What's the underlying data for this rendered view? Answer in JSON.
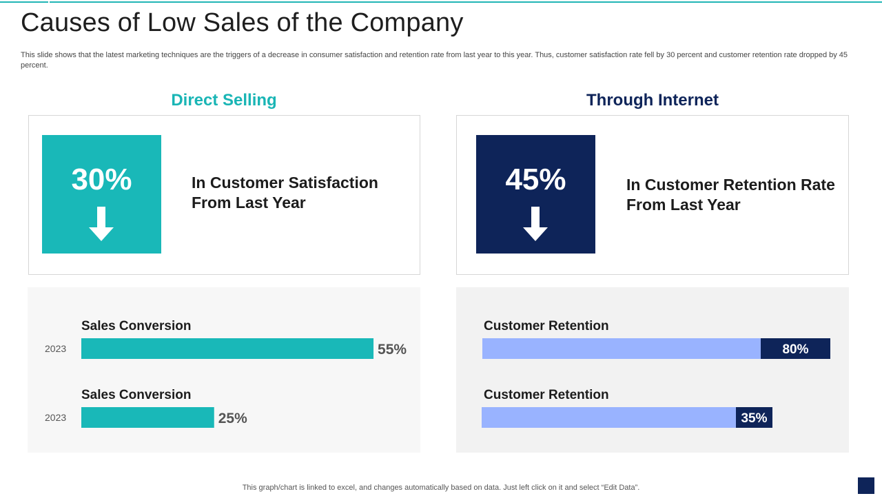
{
  "slide": {
    "title": "Causes of Low Sales of the Company",
    "subtitle": "This slide shows that the latest marketing techniques are the triggers of a decrease in consumer satisfaction and retention rate from last year to this year.  Thus, customer satisfaction rate fell by 30 percent and customer retention rate dropped by 45 percent.",
    "footer": "This graph/chart is linked to excel,  and changes automatically based on data. Just left click on it and select “Edit Data”."
  },
  "sections": {
    "left": {
      "heading": "Direct Selling",
      "stat_value": "30%",
      "stat_text": "In Customer Satisfaction From Last Year",
      "icon": "arrow-down-icon"
    },
    "right": {
      "heading": "Through Internet",
      "stat_value": "45%",
      "stat_text": "In Customer Retention Rate From Last Year",
      "icon": "arrow-down-icon"
    }
  },
  "colors": {
    "teal": "#19b8b8",
    "navy": "#0e2459",
    "light_blue": "#99b3ff"
  },
  "chart_data": [
    {
      "type": "bar",
      "orientation": "horizontal",
      "title": "",
      "xlim": [
        0,
        100
      ],
      "series": [
        {
          "name": "Sales Conversion",
          "category": "2023",
          "value": 55,
          "label": "55%"
        },
        {
          "name": "Sales Conversion",
          "category": "2023",
          "value": 25,
          "label": "25%"
        }
      ]
    },
    {
      "type": "bar",
      "orientation": "horizontal",
      "stacked": true,
      "title": "",
      "xlim": [
        0,
        100
      ],
      "series": [
        {
          "name": "Customer Retention",
          "value": 80,
          "label": "80%"
        },
        {
          "name": "Customer Retention",
          "value": 35,
          "label": "35%"
        }
      ]
    }
  ]
}
